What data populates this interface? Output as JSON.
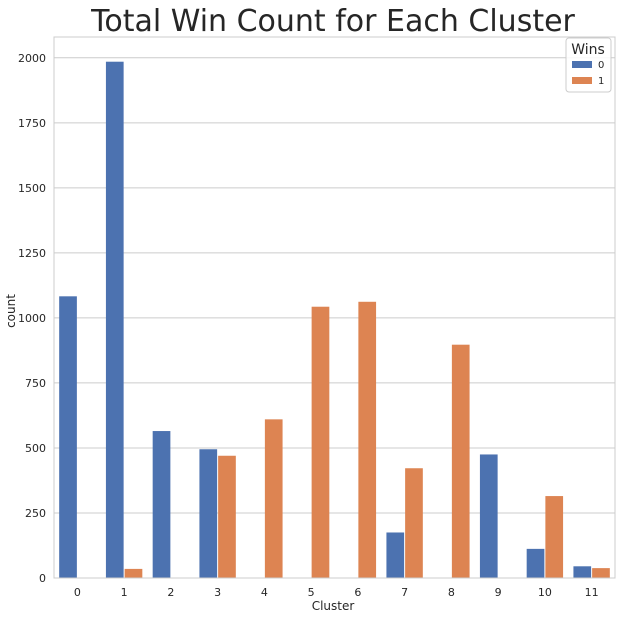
{
  "chart_data": {
    "type": "bar",
    "title": "Total Win Count for Each Cluster",
    "xlabel": "Cluster",
    "ylabel": "count",
    "categories": [
      "0",
      "1",
      "2",
      "3",
      "4",
      "5",
      "6",
      "7",
      "8",
      "9",
      "10",
      "11"
    ],
    "series": [
      {
        "name": "0",
        "color": "#4c72b0",
        "values": [
          1083,
          1985,
          565,
          495,
          0,
          0,
          0,
          175,
          0,
          475,
          112,
          45
        ]
      },
      {
        "name": "1",
        "color": "#dd8452",
        "values": [
          0,
          35,
          0,
          470,
          610,
          1043,
          1062,
          422,
          897,
          0,
          315,
          38
        ]
      }
    ],
    "yticks": [
      "0",
      "250",
      "500",
      "750",
      "1000",
      "1250",
      "1500",
      "1750",
      "2000"
    ],
    "ylim": [
      0,
      2080
    ],
    "grid": "y",
    "legend": {
      "title": "Wins",
      "position": "top-right"
    }
  }
}
